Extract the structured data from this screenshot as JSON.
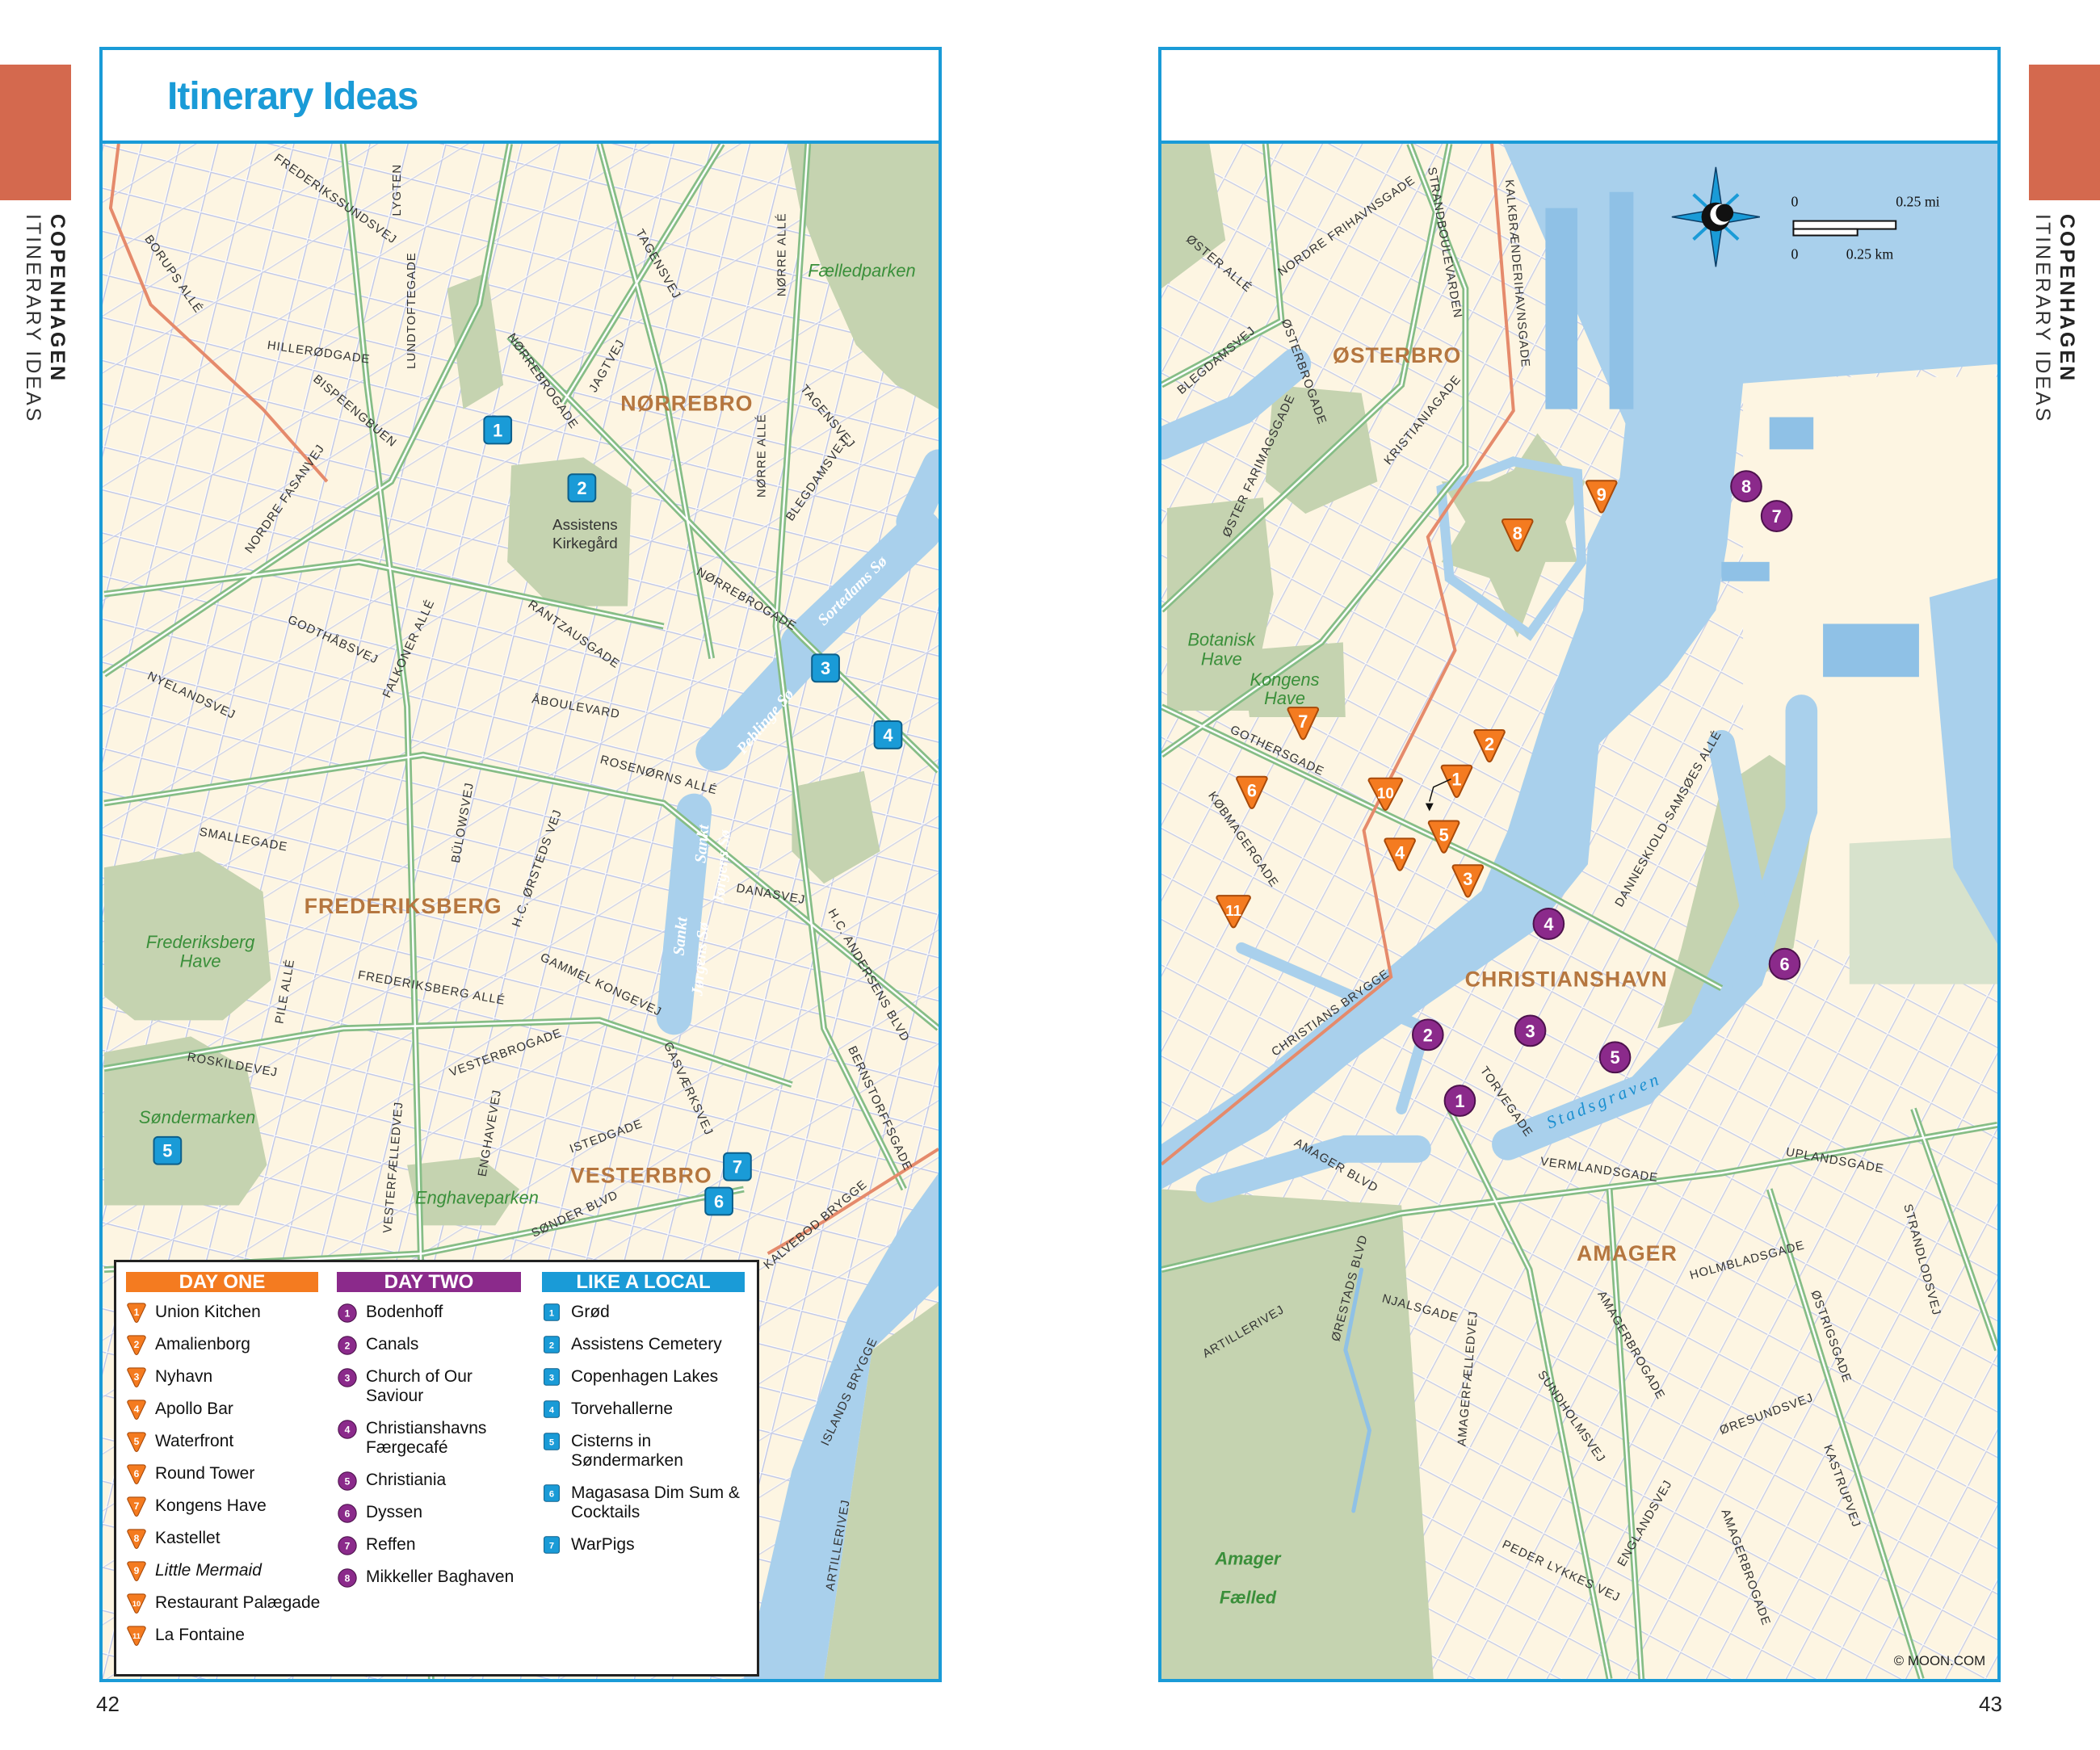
{
  "side_tab": {
    "city": "COPENHAGEN",
    "section": "ITINERARY IDEAS"
  },
  "left_page": {
    "title": "Itinerary Ideas",
    "page_number": "42"
  },
  "right_page": {
    "page_number": "43",
    "credit": "© MOON.COM"
  },
  "colors": {
    "frame": "#1a9bd7",
    "tab": "#d4694e",
    "day_one": "#f47b20",
    "day_two": "#8b2a8b",
    "like_a_local": "#1a9bd7",
    "land": "#fdf5e2",
    "park": "#c5d3b0",
    "water": "#a9d0ec",
    "main_road": "#86bd86",
    "district_label": "#b5763f"
  },
  "left_map": {
    "districts": [
      "NØRREBRO",
      "FREDERIKSBERG",
      "VESTERBRO"
    ],
    "parks": [
      "Fælledparken",
      "Assistens",
      "Kirkegård",
      "Frederiksberg",
      "Have",
      "Søndermarken",
      "Enghaveparken"
    ],
    "lakes": [
      "Sortedams Sø",
      "Peblinge Sø",
      "Sankt",
      "Jørgens Sø",
      "Sankt",
      "Jørgens Sø"
    ],
    "streets": [
      "FREDERIKSSUNDSVEJ",
      "LYGTEN",
      "BORUPS ALLÉ",
      "HILLERØDGADE",
      "BISPEENGBUEN",
      "LUNDTOFTEGADE",
      "NØRREBROGADE",
      "JAGTVEJ",
      "TAGENSVEJ",
      "NØRRE ALLÉ",
      "TAGENSVEJ",
      "NORDRE FASANVEJ",
      "GODTHÅBSVEJ",
      "FALKONER ALLÉ",
      "NYELANDSVEJ",
      "RANTZAUSGADE",
      "ÅBOULEVARD",
      "NØRREBROGADE",
      "BLEGDAMSVEJ",
      "NØRRE ALLÉ",
      "ROSENØRNS ALLÉ",
      "SMALLEGADE",
      "BÜLOWSVEJ",
      "H.C. ØRSTEDS VEJ",
      "DANASVEJ",
      "FREDERIKSBERG ALLÉ",
      "GAMMEL KONGEVEJ",
      "PILE ALLÉ",
      "ROSKILDEVEJ",
      "VESTERBROGADE",
      "H.C. ANDERSENS BLVD",
      "BERNSTORFFSGADE",
      "GASVÆRKSVEJ",
      "ENGHAVEVEJ",
      "VESTERFÆLLEDVEJ",
      "ISTEDGADE",
      "SØNDER BLVD",
      "KALVEBOD BRYGGE",
      "ISLANDS BRYGGE",
      "ARTILLERIVEJ"
    ]
  },
  "right_map": {
    "districts": [
      "ØSTERBRO",
      "CHRISTIANSHAVN",
      "AMAGER"
    ],
    "parks": [
      "Botanisk",
      "Have",
      "Kongens",
      "Have",
      "Amager",
      "Fælled"
    ],
    "water": [
      "Stadsgraven"
    ],
    "scale": {
      "mi_zero": "0",
      "mi_label": "0.25 mi",
      "km_zero": "0",
      "km_label": "0.25 km"
    },
    "streets": [
      "NORDRE FRIHAVNSGADE",
      "STRANDBOULEVARDEN",
      "KALKBRÆNDERIHAVNSGADE",
      "ØSTER ALLÉ",
      "BLEGDAMSVEJ",
      "ØSTERBROGADE",
      "KRISTIANIAGADE",
      "ØSTER FARIMAGSGADE",
      "GOTHERSGADE",
      "KØBMAGERGADE",
      "CHRISTIANS BRYGGE",
      "TORVEGADE",
      "AMAGER BLVD",
      "VERMLANDSGADE",
      "UPLANDSGADE",
      "DANNESKIOLD-SAMSØES ALLÉ",
      "HOLMBLADSGADE",
      "STRANDLODSVEJ",
      "ØRESTADS BLVD",
      "NJALSGADE",
      "ARTILLERIVEJ",
      "AMAGERBROGADE",
      "ØSTRIGSGADE",
      "AMAGERFÆLLEDVEJ",
      "SUNDHOLMSVEJ",
      "ØRESUNDSVEJ",
      "KASTRUPVEJ",
      "ENGLANDSVEJ",
      "PEDER LYKKES VEJ",
      "AMAGERBROGADE"
    ]
  },
  "legend": {
    "day_one": {
      "title": "DAY ONE",
      "items": [
        {
          "num": "1",
          "name": "Union Kitchen"
        },
        {
          "num": "2",
          "name": "Amalienborg"
        },
        {
          "num": "3",
          "name": "Nyhavn"
        },
        {
          "num": "4",
          "name": "Apollo Bar"
        },
        {
          "num": "5",
          "name": "Waterfront"
        },
        {
          "num": "6",
          "name": "Round Tower"
        },
        {
          "num": "7",
          "name": "Kongens Have"
        },
        {
          "num": "8",
          "name": "Kastellet"
        },
        {
          "num": "9",
          "name": "Little Mermaid",
          "italic": true
        },
        {
          "num": "10",
          "name": "Restaurant Palægade"
        },
        {
          "num": "11",
          "name": "La Fontaine"
        }
      ]
    },
    "day_two": {
      "title": "DAY TWO",
      "items": [
        {
          "num": "1",
          "name": "Bodenhoff"
        },
        {
          "num": "2",
          "name": "Canals"
        },
        {
          "num": "3",
          "name": "Church of Our Saviour"
        },
        {
          "num": "4",
          "name": "Christianshavns Færgecafé"
        },
        {
          "num": "5",
          "name": "Christiania"
        },
        {
          "num": "6",
          "name": "Dyssen"
        },
        {
          "num": "7",
          "name": "Reffen"
        },
        {
          "num": "8",
          "name": "Mikkeller Baghaven"
        }
      ]
    },
    "like_a_local": {
      "title": "LIKE A LOCAL",
      "items": [
        {
          "num": "1",
          "name": "Grød"
        },
        {
          "num": "2",
          "name": "Assistens Cemetery"
        },
        {
          "num": "3",
          "name": "Copenhagen Lakes"
        },
        {
          "num": "4",
          "name": "Torvehallerne"
        },
        {
          "num": "5",
          "name": "Cisterns in Søndermarken"
        },
        {
          "num": "6",
          "name": "Magasasa Dim Sum & Cocktails"
        },
        {
          "num": "7",
          "name": "WarPigs"
        }
      ]
    }
  }
}
